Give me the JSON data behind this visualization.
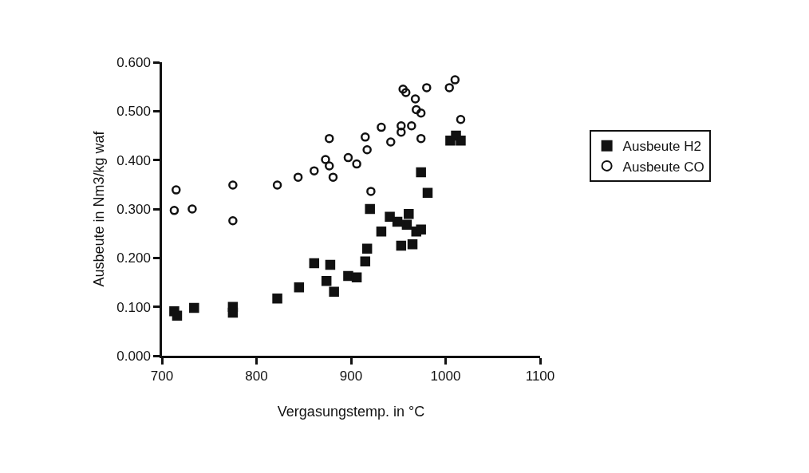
{
  "chart_data": {
    "type": "scatter",
    "xlabel": "Vergasungstemp. in °C",
    "ylabel": "Ausbeute in Nm3/kg waf",
    "xlim": [
      700,
      1100
    ],
    "xticks": [
      700,
      800,
      900,
      1000,
      1100
    ],
    "ylim": [
      0,
      0.6
    ],
    "yticks": [
      {
        "value": 0,
        "label": "0.000"
      },
      {
        "value": 0.1,
        "label": "0.100"
      },
      {
        "value": 0.2,
        "label": "0.200"
      },
      {
        "value": 0.3,
        "label": "0.300"
      },
      {
        "value": 0.4,
        "label": "0.400"
      },
      {
        "value": 0.5,
        "label": "0.500"
      },
      {
        "value": 0.6,
        "label": "0.600"
      }
    ],
    "legend": "right",
    "series": [
      {
        "name": "Ausbeute H2",
        "color": "#111111",
        "marker": "square",
        "x": [
          713,
          716,
          734,
          775,
          775,
          822,
          845,
          861,
          874,
          878,
          882,
          897,
          906,
          915,
          917,
          920,
          932,
          941,
          949,
          953,
          961,
          959,
          965,
          969,
          974,
          974,
          981,
          1005,
          1011,
          1016
        ],
        "values": [
          0.091,
          0.082,
          0.098,
          0.088,
          0.1,
          0.117,
          0.14,
          0.189,
          0.153,
          0.186,
          0.131,
          0.163,
          0.16,
          0.193,
          0.219,
          0.3,
          0.254,
          0.284,
          0.274,
          0.225,
          0.29,
          0.268,
          0.228,
          0.254,
          0.258,
          0.375,
          0.333,
          0.44,
          0.45,
          0.44
        ]
      },
      {
        "name": "Ausbeute CO",
        "color": "#111111",
        "marker": "circle-open",
        "x": [
          713,
          715,
          732,
          775,
          775,
          822,
          844,
          861,
          873,
          877,
          877,
          881,
          897,
          906,
          915,
          917,
          921,
          932,
          942,
          953,
          953,
          964,
          955,
          958,
          968,
          969,
          974,
          974,
          980,
          1004,
          1010,
          1016
        ],
        "values": [
          0.297,
          0.339,
          0.3,
          0.349,
          0.276,
          0.349,
          0.365,
          0.378,
          0.401,
          0.444,
          0.388,
          0.365,
          0.405,
          0.392,
          0.447,
          0.421,
          0.336,
          0.467,
          0.437,
          0.457,
          0.47,
          0.47,
          0.545,
          0.538,
          0.525,
          0.503,
          0.496,
          0.444,
          0.548,
          0.548,
          0.564,
          0.483
        ]
      }
    ]
  }
}
